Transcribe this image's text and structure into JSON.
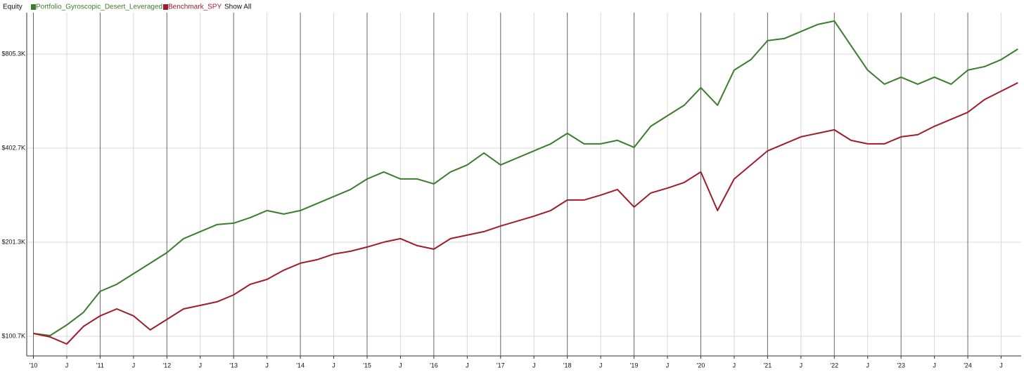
{
  "chart_data": {
    "type": "line",
    "title": "Equity",
    "legend_action": "Show All",
    "log_scale": true,
    "grid": true,
    "x": [
      2010,
      2010.25,
      2010.5,
      2010.75,
      2011,
      2011.25,
      2011.5,
      2011.75,
      2012,
      2012.25,
      2012.5,
      2012.75,
      2013,
      2013.25,
      2013.5,
      2013.75,
      2014,
      2014.25,
      2014.5,
      2014.75,
      2015,
      2015.25,
      2015.5,
      2015.75,
      2016,
      2016.25,
      2016.5,
      2016.75,
      2017,
      2017.25,
      2017.5,
      2017.75,
      2018,
      2018.25,
      2018.5,
      2018.75,
      2019,
      2019.25,
      2019.5,
      2019.75,
      2020,
      2020.25,
      2020.5,
      2020.75,
      2021,
      2021.25,
      2021.5,
      2021.75,
      2022,
      2022.25,
      2022.5,
      2022.75,
      2023,
      2023.25,
      2023.5,
      2023.75,
      2024,
      2024.25,
      2024.5,
      2024.75
    ],
    "series": [
      {
        "name": "Portfolio_Gyroscopic_Desert_Leveraged",
        "color": "#3a7d2c",
        "values": [
          102800,
          101200,
          109400,
          120100,
          140200,
          147700,
          159600,
          172500,
          186400,
          206700,
          217700,
          229200,
          231600,
          241400,
          254200,
          247700,
          254200,
          267700,
          281900,
          296900,
          320800,
          337900,
          320800,
          320800,
          309400,
          337900,
          355800,
          388500,
          355800,
          374700,
          394600,
          415500,
          449100,
          415500,
          415500,
          426400,
          404900,
          472900,
          511000,
          552300,
          628500,
          552300,
          715300,
          773000,
          888900,
          902800,
          950800,
          1001200,
          1027400,
          857300,
          715300,
          645000,
          679300,
          645000,
          679300,
          645000,
          715300,
          734000,
          773000,
          835500
        ]
      },
      {
        "name": "Benchmark_SPY",
        "color": "#a01c2b",
        "values": [
          102800,
          100200,
          95100,
          108300,
          117000,
          123200,
          117000,
          105500,
          114000,
          123200,
          126400,
          129800,
          136600,
          147700,
          153100,
          163800,
          172500,
          177000,
          184500,
          188300,
          194300,
          201400,
          206700,
          196300,
          191300,
          206700,
          212100,
          217700,
          226900,
          235200,
          243900,
          254200,
          274700,
          274700,
          284900,
          296900,
          260900,
          289300,
          300000,
          312600,
          337900,
          254200,
          320800,
          355800,
          394600,
          415500,
          437600,
          449100,
          460800,
          426400,
          415500,
          415500,
          437600,
          444500,
          472900,
          498000,
          524500,
          575600,
          612500,
          651700
        ]
      }
    ],
    "xlim": [
      2009.9,
      2024.8
    ],
    "xticks": [
      {
        "value": 2010,
        "label": "'10"
      },
      {
        "value": 2010.5,
        "label": "J"
      },
      {
        "value": 2011,
        "label": "'11"
      },
      {
        "value": 2011.5,
        "label": "J"
      },
      {
        "value": 2012,
        "label": "'12"
      },
      {
        "value": 2012.5,
        "label": "J"
      },
      {
        "value": 2013,
        "label": "'13"
      },
      {
        "value": 2013.5,
        "label": "J"
      },
      {
        "value": 2014,
        "label": "'14"
      },
      {
        "value": 2014.5,
        "label": "J"
      },
      {
        "value": 2015,
        "label": "'15"
      },
      {
        "value": 2015.5,
        "label": "J"
      },
      {
        "value": 2016,
        "label": "'16"
      },
      {
        "value": 2016.5,
        "label": "J"
      },
      {
        "value": 2017,
        "label": "'17"
      },
      {
        "value": 2017.5,
        "label": "J"
      },
      {
        "value": 2018,
        "label": "'18"
      },
      {
        "value": 2018.5,
        "label": "J"
      },
      {
        "value": 2019,
        "label": "'19"
      },
      {
        "value": 2019.5,
        "label": "J"
      },
      {
        "value": 2020,
        "label": "'20"
      },
      {
        "value": 2020.5,
        "label": "J"
      },
      {
        "value": 2021,
        "label": "'21"
      },
      {
        "value": 2021.5,
        "label": "J"
      },
      {
        "value": 2022,
        "label": "'22"
      },
      {
        "value": 2022.5,
        "label": "J"
      },
      {
        "value": 2023,
        "label": "'23"
      },
      {
        "value": 2023.5,
        "label": "J"
      },
      {
        "value": 2024,
        "label": "'24"
      },
      {
        "value": 2024.5,
        "label": "J"
      }
    ],
    "ylim": [
      87100,
      1092600
    ],
    "yticks": [
      {
        "value": 100700,
        "label": "$100.7K"
      },
      {
        "value": 201300,
        "label": "$201.3K"
      },
      {
        "value": 402700,
        "label": "$402.7K"
      },
      {
        "value": 805300,
        "label": "$805.3K"
      }
    ]
  }
}
